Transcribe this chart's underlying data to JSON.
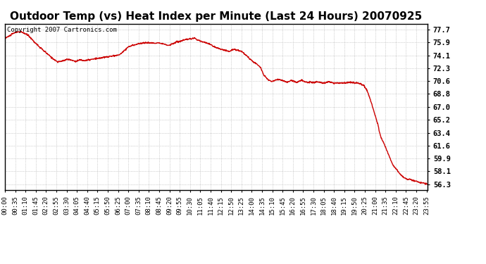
{
  "title": "Outdoor Temp (vs) Heat Index per Minute (Last 24 Hours) 20070925",
  "copyright_text": "Copyright 2007 Cartronics.com",
  "line_color": "#cc0000",
  "background_color": "#ffffff",
  "grid_color": "#aaaaaa",
  "yticks": [
    56.3,
    58.1,
    59.9,
    61.6,
    63.4,
    65.2,
    67.0,
    68.8,
    70.6,
    72.3,
    74.1,
    75.9,
    77.7
  ],
  "ylim": [
    55.5,
    78.5
  ],
  "xtick_labels": [
    "00:00",
    "00:35",
    "01:10",
    "01:45",
    "02:20",
    "02:55",
    "03:30",
    "04:05",
    "04:40",
    "05:15",
    "05:50",
    "06:25",
    "07:00",
    "07:35",
    "08:10",
    "08:45",
    "09:20",
    "09:55",
    "10:30",
    "11:05",
    "11:40",
    "12:15",
    "12:50",
    "13:25",
    "14:00",
    "14:35",
    "15:10",
    "15:45",
    "16:20",
    "16:55",
    "17:30",
    "18:05",
    "18:40",
    "19:15",
    "19:50",
    "20:25",
    "21:00",
    "21:35",
    "22:10",
    "22:45",
    "23:20",
    "23:55"
  ],
  "title_fontsize": 11,
  "tick_fontsize": 6.5,
  "copyright_fontsize": 6.5
}
